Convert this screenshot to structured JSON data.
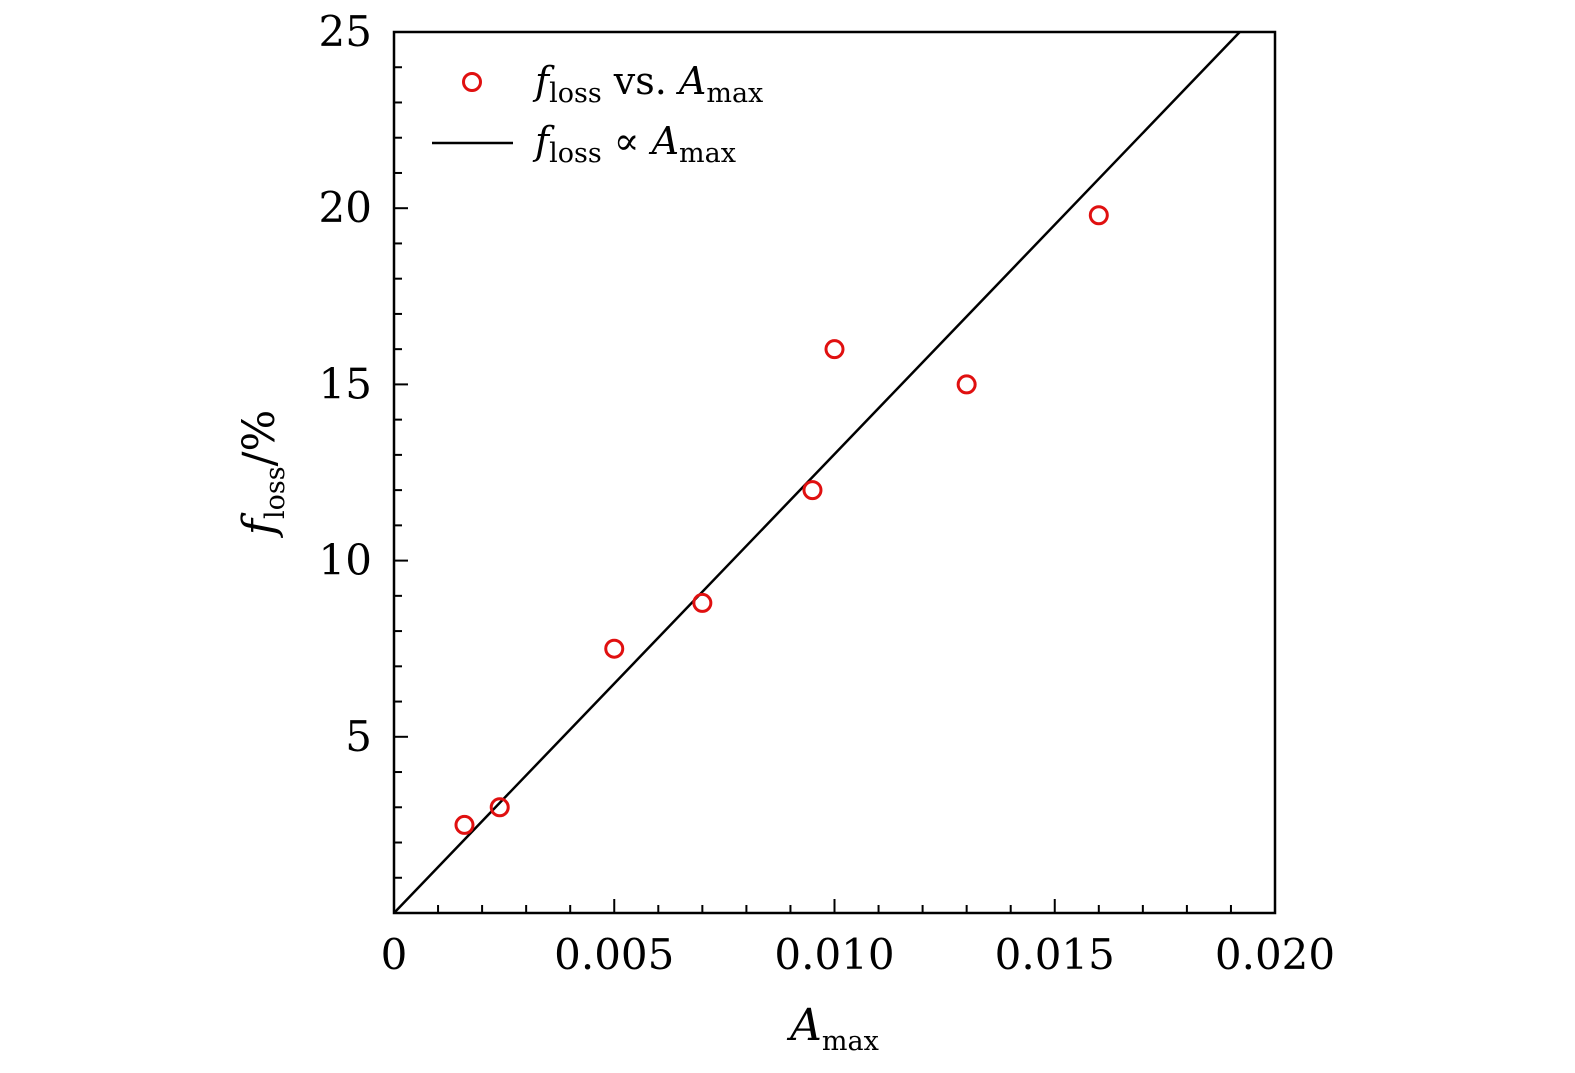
{
  "chart_data": {
    "type": "scatter",
    "xlim": [
      0,
      0.02
    ],
    "ylim": [
      0,
      25
    ],
    "x_ticks": [
      0,
      0.005,
      0.01,
      0.015,
      0.02
    ],
    "x_tick_labels": [
      "0",
      "0.005",
      "0.010",
      "0.015",
      "0.020"
    ],
    "y_ticks": [
      5,
      10,
      15,
      20,
      25
    ],
    "y_tick_labels": [
      "5",
      "10",
      "15",
      "20",
      "25"
    ],
    "xlabel": {
      "main": "A",
      "sub": "max"
    },
    "ylabel": {
      "main": "f",
      "sub": "loss",
      "suffix": "/%"
    },
    "legend_position": "top-left",
    "grid": false,
    "series": [
      {
        "name": "f_loss vs. A_max",
        "kind": "scatter",
        "marker": "open-circle",
        "color": "#e01010",
        "x": [
          0.0016,
          0.0024,
          0.005,
          0.007,
          0.0095,
          0.01,
          0.013,
          0.016
        ],
        "y": [
          2.5,
          3.0,
          7.5,
          8.8,
          12.0,
          16.0,
          15.0,
          19.8
        ]
      },
      {
        "name": "f_loss ∝ A_max",
        "kind": "line",
        "color": "#000000",
        "x": [
          0,
          0.0192
        ],
        "y": [
          0,
          25
        ]
      }
    ],
    "legend": [
      {
        "f": "f",
        "f_sub": "loss",
        "op": " vs. ",
        "a": "A",
        "a_sub": "max"
      },
      {
        "f": "f",
        "f_sub": "loss",
        "op": " ∝ ",
        "a": "A",
        "a_sub": "max"
      }
    ]
  }
}
